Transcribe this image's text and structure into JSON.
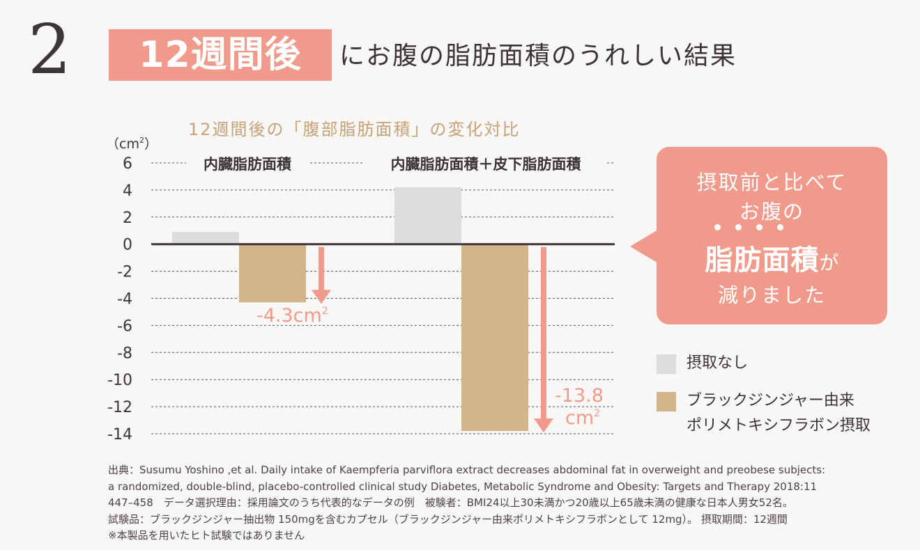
{
  "header": {
    "step_number": "2",
    "badge": "12週間後",
    "title_rest": "にお腹の脂肪面積のうれしい結果"
  },
  "chart_data": {
    "type": "bar",
    "title": "12週間後の「腹部脂肪面積」の変化対比",
    "ylabel_prefix": "（cm",
    "ylabel_sup": "2",
    "ylabel_suffix": "）",
    "ylim": [
      -14,
      6
    ],
    "yticks": [
      "6",
      "4",
      "2",
      "0",
      "-2",
      "-4",
      "-6",
      "-8",
      "-10",
      "-12",
      "-14"
    ],
    "categories": [
      "内臓脂肪面積",
      "内臓脂肪面積＋皮下脂肪面積"
    ],
    "series": [
      {
        "name": "摂取なし",
        "values": [
          0.9,
          4.2
        ],
        "color": "#dcdcdc"
      },
      {
        "name": "ブラックジンジャー由来\nポリメトキシフラボン摂取",
        "values": [
          -4.3,
          -13.8
        ],
        "color": "#d4b48b"
      }
    ],
    "annotations": [
      {
        "value_text": "-4.3cm",
        "sup": "2",
        "category": 0
      },
      {
        "value_text": "-13.8",
        "unit_text": "cm",
        "sup": "2",
        "category": 1
      }
    ],
    "accent_color": "#f09a8b",
    "grid": true
  },
  "callout": {
    "line1": "摂取前と比べて",
    "line2": "お腹の",
    "emphasis": "脂肪面積",
    "particle": "が",
    "line4": "減りました"
  },
  "legend": {
    "items": [
      {
        "label_lines": [
          "摂取なし"
        ],
        "color": "#dcdcdc"
      },
      {
        "label_lines": [
          "ブラックジンジャー由来",
          "ポリメトキシフラボン摂取"
        ],
        "color": "#d4b48b"
      }
    ]
  },
  "source": {
    "lines": [
      "出典：Susumu Yoshino ,et al. Daily intake of Kaempferia parviflora extract decreases abdominal fat in overweight and preobese subjects:",
      "a randomized, double-blind, placebo-controlled clinical study Diabetes, Metabolic Syndrome and Obesity: Targets and Therapy 2018:11",
      "447–458　データ選択理由：採用論文のうち代表的なデータの例　被験者：BMI24以上30未満かつ20歳以上65歳未満の健康な日本人男女52名。",
      "試験品：ブラックジンジャー抽出物 150mgを含むカプセル（ブラックジンジャー由来ポリメトキシフラボンとして 12mg）。 摂取期間：12週間",
      "※本製品を用いたヒト試験ではありません"
    ]
  }
}
